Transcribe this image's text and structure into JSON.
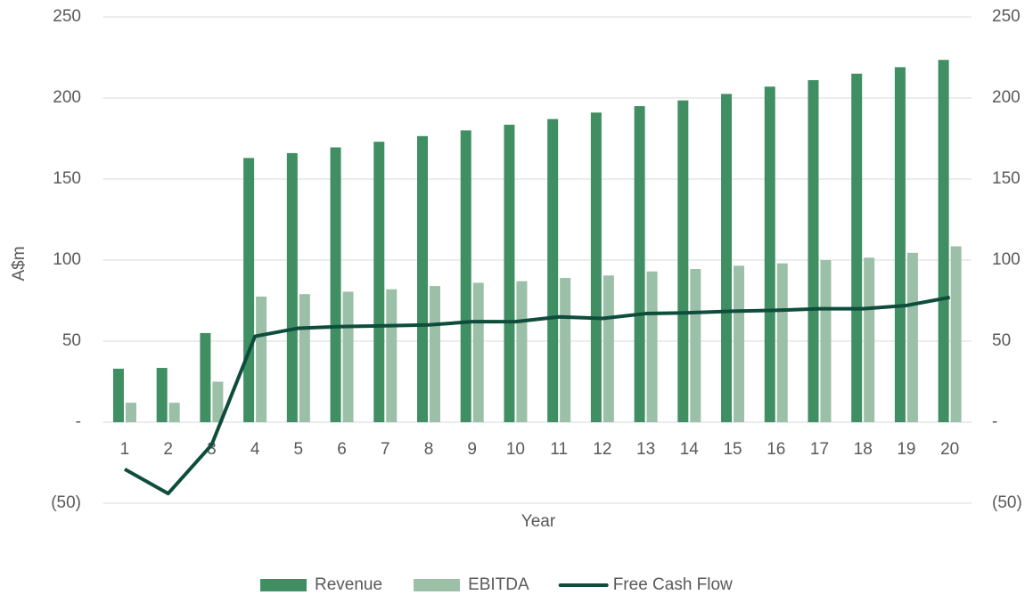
{
  "chart_data": {
    "type": "bar_line",
    "x_label": "Year",
    "y_label": "A$m",
    "categories": [
      "1",
      "2",
      "3",
      "4",
      "5",
      "6",
      "7",
      "8",
      "9",
      "10",
      "11",
      "12",
      "13",
      "14",
      "15",
      "16",
      "17",
      "18",
      "19",
      "20"
    ],
    "series": [
      {
        "name": "Revenue",
        "type": "bar",
        "color": "#3f8f63",
        "values": [
          33,
          33.5,
          55,
          163,
          166,
          169.5,
          173,
          176.5,
          180,
          183.5,
          187,
          191,
          195,
          198.5,
          202.5,
          207,
          211,
          215,
          219,
          223.5
        ]
      },
      {
        "name": "EBITDA",
        "type": "bar",
        "color": "#9bbfa7",
        "values": [
          12,
          12,
          25,
          77.5,
          79,
          80.5,
          82,
          84,
          86,
          87,
          89,
          90.5,
          93,
          94.5,
          96.5,
          98,
          100,
          101.5,
          104.5,
          108.5
        ]
      },
      {
        "name": "Free Cash Flow",
        "type": "line",
        "color": "#0e4d3c",
        "values": [
          -29,
          -44,
          -14,
          53,
          58,
          59,
          59.5,
          60,
          62,
          62,
          65,
          64,
          67,
          67.5,
          68.5,
          69,
          70,
          70,
          72,
          77
        ]
      }
    ],
    "ylim": [
      -50,
      250
    ],
    "yticks": [
      {
        "value": -50,
        "label": "(50)"
      },
      {
        "value": 0,
        "label": "-"
      },
      50,
      100,
      150,
      200,
      250
    ],
    "y2lim": [
      -50,
      250
    ],
    "y2ticks": [
      {
        "value": -50,
        "label": "(50)"
      },
      {
        "value": 0,
        "label": "-"
      },
      50,
      100,
      150,
      200,
      250
    ],
    "grid": true,
    "legend": "bottom"
  }
}
